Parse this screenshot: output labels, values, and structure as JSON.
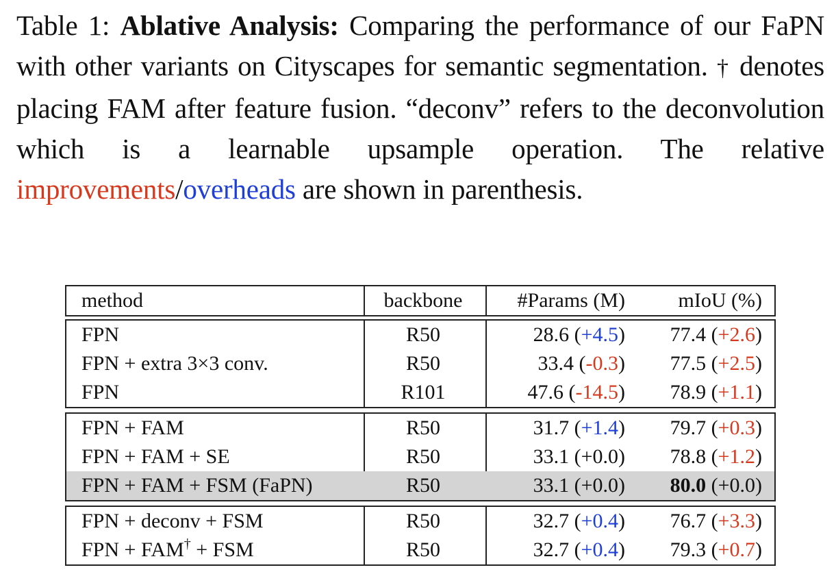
{
  "caption": {
    "prefix": "Table 1: ",
    "bold": "Ablative Analysis:",
    "text1": " Comparing the performance of our FaPN with other variants on Cityscapes for semantic segmentation. ",
    "dagger": "†",
    "text2": " denotes placing FAM after feature fusion. “deconv” refers to the deconvolution which is a learnable upsample operation. The relative ",
    "improvements": "improvements",
    "slash": "/",
    "overheads": "overheads",
    "text3": " are shown in parenthesis."
  },
  "colors": {
    "improvement": "#d63a1e",
    "overhead": "#1f3fd6",
    "highlight": "#d4d4d4"
  },
  "header": {
    "method": "method",
    "backbone": "backbone",
    "params": "#Params (M)",
    "miou": "mIoU (%)"
  },
  "groups": [
    [
      {
        "method": "FPN",
        "backbone": "R50",
        "params": "28.6",
        "params_delta": "+4.5",
        "miou": "77.4",
        "miou_delta": "+2.6"
      },
      {
        "method": "FPN + extra 3×3 conv.",
        "backbone": "R50",
        "params": "33.4",
        "params_delta": "-0.3",
        "miou": "77.5",
        "miou_delta": "+2.5"
      },
      {
        "method": "FPN",
        "backbone": "R101",
        "params": "47.6",
        "params_delta": "-14.5",
        "miou": "78.9",
        "miou_delta": "+1.1"
      }
    ],
    [
      {
        "method": "FPN + FAM",
        "backbone": "R50",
        "params": "31.7",
        "params_delta": "+1.4",
        "miou": "79.7",
        "miou_delta": "+0.3"
      },
      {
        "method": "FPN + FAM + SE",
        "backbone": "R50",
        "params": "33.1",
        "params_delta": "+0.0",
        "miou": "78.8",
        "miou_delta": "+1.2"
      },
      {
        "method": "FPN + FAM + FSM (FaPN)",
        "backbone": "R50",
        "params": "33.1",
        "params_delta": "+0.0",
        "miou": "80.0",
        "miou_delta": "+0.0"
      }
    ],
    [
      {
        "method": "FPN + deconv + FSM",
        "backbone": "R50",
        "params": "32.7",
        "params_delta": "+0.4",
        "miou": "76.7",
        "miou_delta": "+3.3"
      },
      {
        "method_base": "FPN + FAM",
        "method_sup": "†",
        "method_tail": " + FSM",
        "backbone": "R50",
        "params": "32.7",
        "params_delta": "+0.4",
        "miou": "79.3",
        "miou_delta": "+0.7"
      }
    ]
  ]
}
